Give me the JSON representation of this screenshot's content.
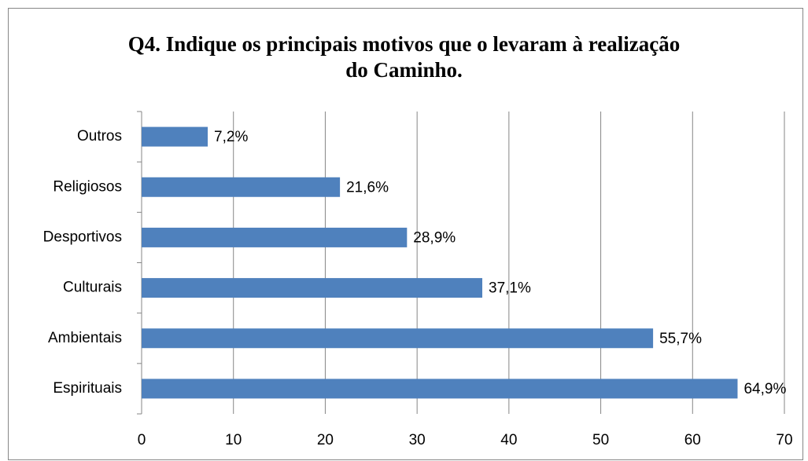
{
  "chart_data": {
    "type": "bar",
    "orientation": "horizontal",
    "title": "Q4. Indique os principais motivos que o levaram à realização do Caminho.",
    "categories": [
      "Espirituais",
      "Ambientais",
      "Culturais",
      "Desportivos",
      "Religiosos",
      "Outros"
    ],
    "values": [
      64.9,
      55.7,
      37.1,
      28.9,
      21.6,
      7.2
    ],
    "value_labels": [
      "64,9%",
      "55,7%",
      "37,1%",
      "28,9%",
      "21,6%",
      "7,2%"
    ],
    "color": "#4f81bd",
    "xlim": [
      0,
      70
    ],
    "xticks": [
      0,
      10,
      20,
      30,
      40,
      50,
      60,
      70
    ],
    "grid": true
  }
}
